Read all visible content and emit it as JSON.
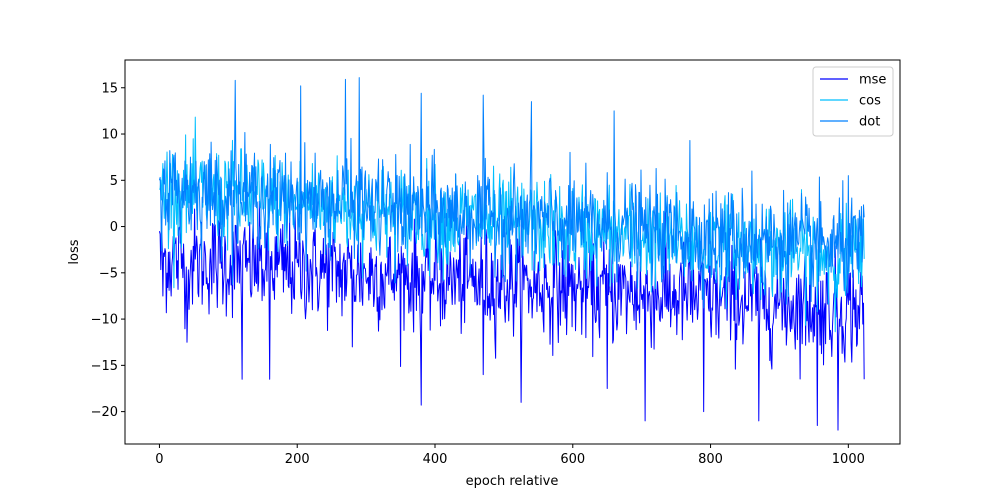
{
  "chart_data": {
    "type": "line",
    "title": "",
    "xlabel": "epoch relative",
    "ylabel": "loss",
    "xlim": [
      -50,
      1075
    ],
    "ylim": [
      -23.5,
      18
    ],
    "xticks": [
      0,
      200,
      400,
      600,
      800,
      1000
    ],
    "yticks": [
      -20,
      -15,
      -10,
      -5,
      0,
      5,
      10,
      15
    ],
    "grid": false,
    "legend_position": "top-right",
    "n_points": 1024,
    "series": [
      {
        "name": "mse",
        "color": "#0000ff",
        "trend_start": -3.5,
        "trend_end": -9.0,
        "noise": 2.8,
        "sampled": [
          [
            0,
            -0.5
          ],
          [
            5,
            -7.5
          ],
          [
            40,
            -12.5
          ],
          [
            120,
            -16.5
          ],
          [
            160,
            -16.5
          ],
          [
            280,
            -13
          ],
          [
            380,
            -19.3
          ],
          [
            470,
            -16
          ],
          [
            525,
            -19
          ],
          [
            650,
            -17.5
          ],
          [
            705,
            -21
          ],
          [
            790,
            -20
          ],
          [
            870,
            -21
          ],
          [
            955,
            -21.5
          ],
          [
            985,
            -22
          ],
          [
            1023,
            -16.5
          ]
        ]
      },
      {
        "name": "cos",
        "color": "#00bfff",
        "trend_start": 4.0,
        "trend_end": -3.5,
        "noise": 2.6,
        "sampled": [
          [
            0,
            4
          ],
          [
            100,
            7
          ],
          [
            300,
            4
          ],
          [
            500,
            1
          ],
          [
            700,
            -1.5
          ],
          [
            900,
            -3
          ],
          [
            1023,
            -3.5
          ]
        ]
      },
      {
        "name": "dot",
        "color": "#0080ff",
        "trend_start": 4.2,
        "trend_end": -2.5,
        "noise": 2.6,
        "sampled": [
          [
            0,
            5
          ],
          [
            110,
            15.8
          ],
          [
            205,
            15.2
          ],
          [
            270,
            15.9
          ],
          [
            290,
            16.1
          ],
          [
            380,
            14.4
          ],
          [
            470,
            14.2
          ],
          [
            540,
            13.5
          ],
          [
            660,
            12.5
          ],
          [
            770,
            9.3
          ],
          [
            860,
            6
          ],
          [
            1000,
            5.5
          ],
          [
            1023,
            1
          ]
        ]
      }
    ]
  }
}
